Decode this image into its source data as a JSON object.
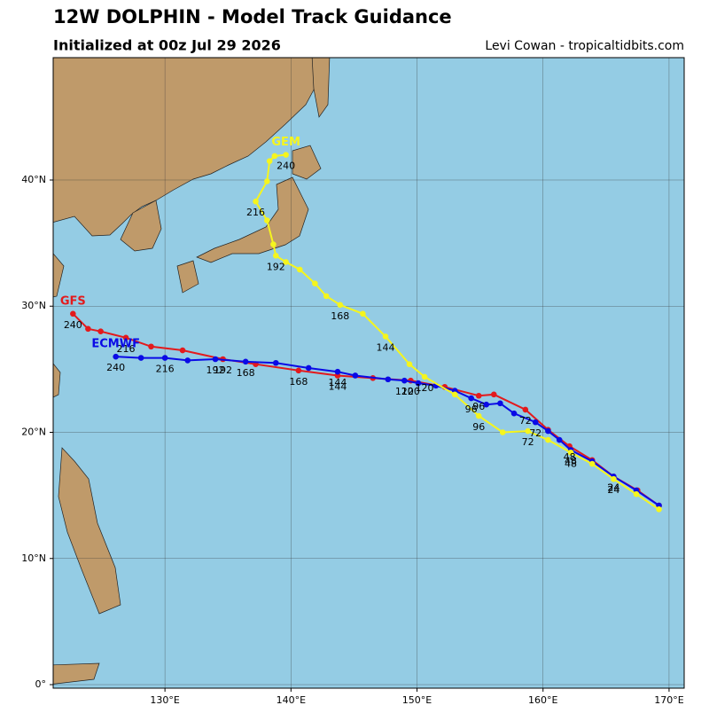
{
  "chart_data": {
    "type": "track_map",
    "title": "12W DOLPHIN - Model Track Guidance",
    "subtitle": "Initialized at 00z Jul 29 2026",
    "credit": "Levi Cowan - tropicaltidbits.com",
    "xlim": [
      121.13,
      171.2
    ],
    "ylim": [
      -0.28,
      49.7
    ],
    "xticks": [
      {
        "value": 130,
        "label": "130°E"
      },
      {
        "value": 140,
        "label": "140°E"
      },
      {
        "value": 150,
        "label": "150°E"
      },
      {
        "value": 160,
        "label": "160°E"
      },
      {
        "value": 170,
        "label": "170°E"
      }
    ],
    "yticks": [
      {
        "value": 0,
        "label": "0°"
      },
      {
        "value": 10,
        "label": "10°N"
      },
      {
        "value": 20,
        "label": "20°N"
      },
      {
        "value": 30,
        "label": "30°N"
      },
      {
        "value": 40,
        "label": "40°N"
      }
    ],
    "grid": true,
    "series": [
      {
        "name": "GFS",
        "color": "#e31a1c",
        "x": [
          169.2,
          167.5,
          165.6,
          163.9,
          162.1,
          160.4,
          158.6,
          156.1,
          154.9,
          152.2,
          149.5,
          146.5,
          143.7,
          140.6,
          137.2,
          134.6,
          131.4,
          128.9,
          126.9,
          124.9,
          123.9,
          122.7
        ],
        "y": [
          14.2,
          15.4,
          16.5,
          17.8,
          18.9,
          20.2,
          21.8,
          23.0,
          22.9,
          23.6,
          24.1,
          24.3,
          24.5,
          24.9,
          25.4,
          25.8,
          26.5,
          26.8,
          27.5,
          28.0,
          28.2,
          29.4
        ],
        "point_labels": [
          null,
          null,
          "24",
          null,
          "48",
          null,
          "72",
          null,
          "96",
          null,
          "120",
          null,
          "144",
          "168",
          null,
          "192",
          null,
          null,
          "216",
          null,
          null,
          "240"
        ]
      },
      {
        "name": "ECMWF",
        "color": "#0a0ae6",
        "x": [
          169.2,
          167.4,
          165.6,
          163.9,
          162.2,
          161.3,
          160.4,
          159.4,
          157.7,
          156.6,
          155.5,
          154.3,
          153.0,
          151.5,
          150.1,
          149.0,
          147.7,
          145.1,
          143.7,
          141.4,
          138.8,
          136.4,
          134.0,
          131.8,
          130.0,
          128.1,
          126.1
        ],
        "y": [
          14.2,
          15.4,
          16.5,
          17.7,
          18.6,
          19.4,
          20.1,
          20.8,
          21.5,
          22.3,
          22.2,
          22.7,
          23.3,
          23.7,
          23.9,
          24.1,
          24.2,
          24.5,
          24.8,
          25.1,
          25.5,
          25.6,
          25.8,
          25.7,
          25.9,
          25.9,
          26.0
        ],
        "point_labels": [
          null,
          null,
          "24",
          null,
          "48",
          null,
          null,
          "72",
          null,
          null,
          null,
          "96",
          null,
          null,
          null,
          "120",
          null,
          null,
          "144",
          null,
          null,
          "168",
          "192",
          null,
          "216",
          null,
          "240"
        ]
      },
      {
        "name": "GEM",
        "color": "#f5f51e",
        "x": [
          169.2,
          167.4,
          165.6,
          163.9,
          162.2,
          160.4,
          158.8,
          156.8,
          154.9,
          153.0,
          150.6,
          149.4,
          147.5,
          145.7,
          143.9,
          142.8,
          141.9,
          140.7,
          139.6,
          138.8,
          138.6,
          138.1,
          137.2,
          138.1,
          138.3,
          138.7,
          139.6
        ],
        "y": [
          13.9,
          15.1,
          16.3,
          17.5,
          18.4,
          19.4,
          20.1,
          20.0,
          21.3,
          23.0,
          24.4,
          25.4,
          27.6,
          29.4,
          30.1,
          30.8,
          31.8,
          32.9,
          33.5,
          34.0,
          34.9,
          36.8,
          38.3,
          39.9,
          41.5,
          41.9,
          42.0
        ],
        "point_labels": [
          null,
          null,
          "24",
          null,
          "48",
          null,
          "72",
          null,
          "96",
          null,
          "120",
          null,
          "144",
          null,
          "168",
          null,
          null,
          null,
          null,
          "192",
          null,
          null,
          "216",
          null,
          null,
          null,
          "240"
        ]
      }
    ]
  }
}
